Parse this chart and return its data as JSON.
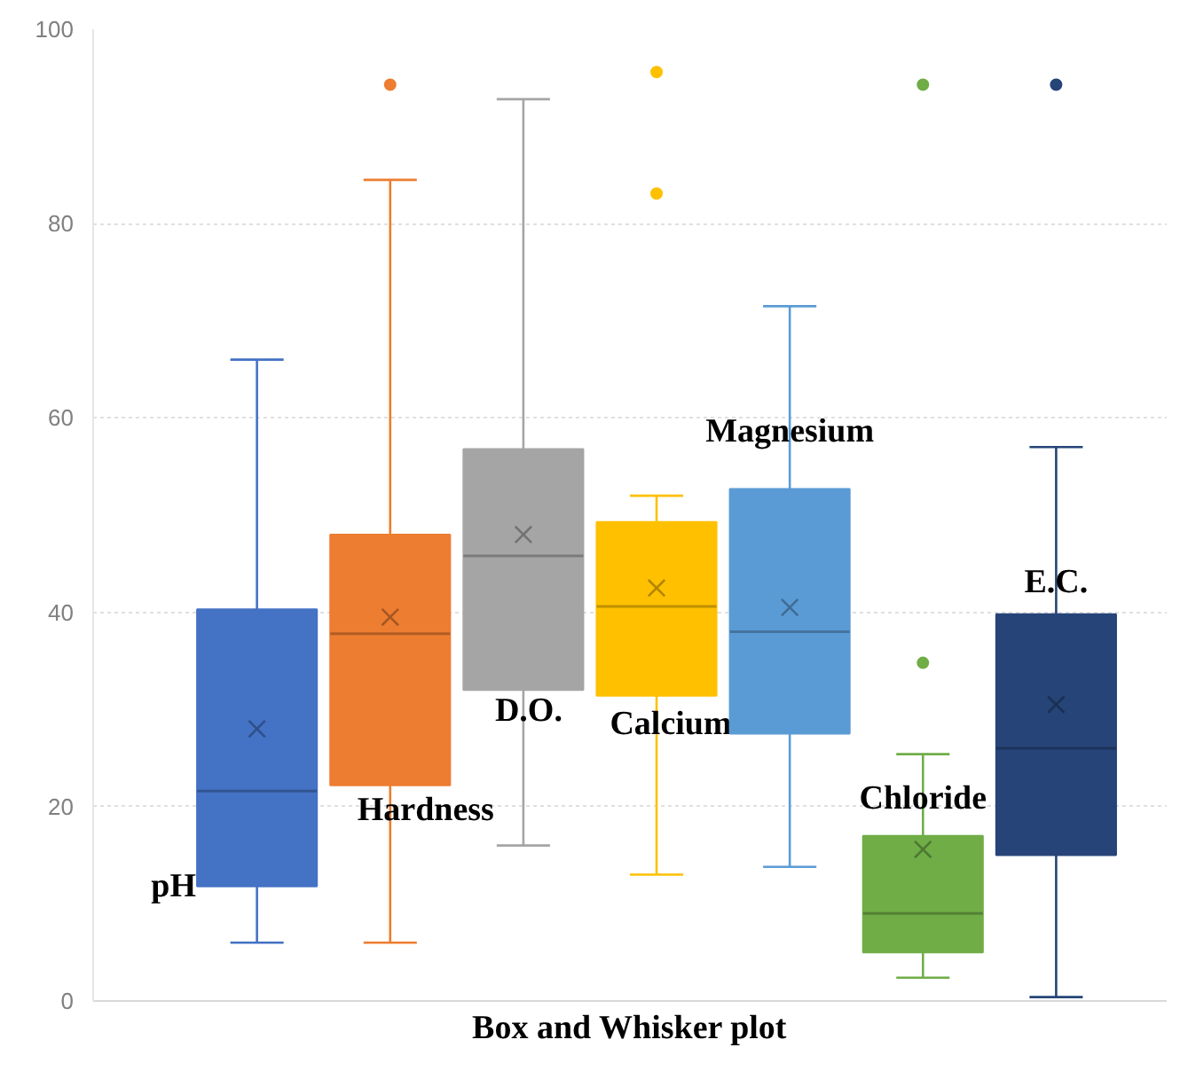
{
  "chart_data": {
    "type": "box",
    "xlabel": "Box and Whisker plot",
    "categories": [
      null
    ],
    "ylim": [
      0,
      100
    ],
    "yticks": [
      0,
      20,
      40,
      60,
      80,
      100
    ],
    "grid": "y",
    "legend": false,
    "series": [
      {
        "name": "pH",
        "color": "#4472c4",
        "boxes": [
          {
            "low": 6,
            "q1": 11.8,
            "median": 21.6,
            "q3": 40.3,
            "high": 66,
            "mean": 28
          }
        ]
      },
      {
        "name": "Hardness",
        "color": "#ed7d31",
        "boxes": [
          {
            "low": 6,
            "q1": 22.2,
            "median": 37.8,
            "q3": 48,
            "high": 84.5,
            "mean": 39.5,
            "outliers": [
              94.3
            ]
          }
        ]
      },
      {
        "name": "D.O.",
        "color": "#a5a5a5",
        "boxes": [
          {
            "low": 16,
            "q1": 32,
            "median": 45.8,
            "q3": 56.8,
            "high": 92.8,
            "mean": 48
          }
        ]
      },
      {
        "name": "Calcium",
        "color": "#ffc000",
        "boxes": [
          {
            "low": 13,
            "q1": 31.4,
            "median": 40.6,
            "q3": 49.3,
            "high": 52,
            "mean": 42.5,
            "outliers": [
              95.6,
              83.1
            ]
          }
        ]
      },
      {
        "name": "Magnesium",
        "color": "#5b9bd5",
        "boxes": [
          {
            "low": 13.8,
            "q1": 27.5,
            "median": 38,
            "q3": 52.7,
            "high": 71.5,
            "mean": 40.5
          }
        ]
      },
      {
        "name": "Chloride",
        "color": "#70ad47",
        "boxes": [
          {
            "low": 2.4,
            "q1": 5,
            "median": 9,
            "q3": 17,
            "high": 25.4,
            "mean": 15.6,
            "outliers": [
              94.3,
              34.8
            ]
          }
        ]
      },
      {
        "name": "E.C.",
        "color": "#264478",
        "boxes": [
          {
            "low": 0.4,
            "q1": 15,
            "median": 26,
            "q3": 39.8,
            "high": 57,
            "mean": 30.5,
            "outliers": [
              94.3
            ]
          }
        ]
      }
    ]
  }
}
